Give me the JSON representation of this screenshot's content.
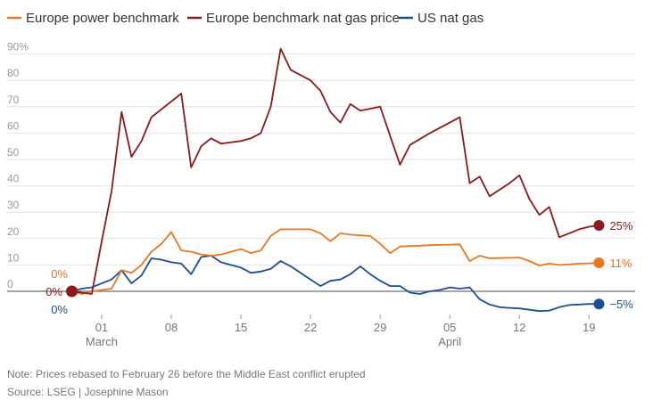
{
  "chart_data": {
    "type": "line",
    "title": "",
    "xlabel": "",
    "ylabel": "",
    "ylim": [
      -5,
      95
    ],
    "y_ticks": [
      0,
      10,
      20,
      30,
      40,
      50,
      60,
      70,
      80,
      90
    ],
    "y_tick_labels": [
      "0",
      "10",
      "20",
      "30",
      "40",
      "50",
      "60",
      "70",
      "80",
      "90%"
    ],
    "grid": true,
    "legend_position": "top-left",
    "x_tick_days": [
      3,
      10,
      17,
      24,
      31,
      38,
      45,
      52
    ],
    "x_tick_labels": [
      "01",
      "08",
      "15",
      "22",
      "29",
      "05",
      "12",
      "19"
    ],
    "month_labels": [
      {
        "day": 3,
        "text": "March"
      },
      {
        "day": 38,
        "text": "April"
      }
    ],
    "x_range": [
      0,
      54
    ],
    "series": [
      {
        "name": "Europe power benchmark",
        "color": "#e87722",
        "end_label": "11%",
        "start_label": "0%",
        "start_label_pos": "above",
        "points": [
          [
            0,
            0
          ],
          [
            1,
            -1
          ],
          [
            2,
            0
          ],
          [
            3,
            0.5
          ],
          [
            4,
            1
          ],
          [
            5,
            8
          ],
          [
            6,
            7
          ],
          [
            7,
            10
          ],
          [
            8,
            15
          ],
          [
            9,
            18
          ],
          [
            10,
            22.5
          ],
          [
            11,
            15.5
          ],
          [
            12,
            15
          ],
          [
            13,
            14
          ],
          [
            14,
            13.5
          ],
          [
            15,
            14
          ],
          [
            16,
            15
          ],
          [
            17,
            16
          ],
          [
            18,
            14.5
          ],
          [
            19,
            15.5
          ],
          [
            20,
            21
          ],
          [
            21,
            23.5
          ],
          [
            22,
            23.5
          ],
          [
            23,
            23.5
          ],
          [
            24,
            23.5
          ],
          [
            25,
            22
          ],
          [
            26,
            19
          ],
          [
            27,
            22
          ],
          [
            28,
            21.5
          ],
          [
            29,
            21.2
          ],
          [
            30,
            21
          ],
          [
            31,
            18
          ],
          [
            32,
            14.5
          ],
          [
            33,
            17
          ],
          [
            34,
            17.2
          ],
          [
            35,
            17.3
          ],
          [
            36,
            17.5
          ],
          [
            37,
            17.6
          ],
          [
            38,
            17.7
          ],
          [
            39,
            17.8
          ],
          [
            40,
            11.5
          ],
          [
            41,
            13.5
          ],
          [
            42,
            12.5
          ],
          [
            43,
            12.6
          ],
          [
            44,
            12.7
          ],
          [
            45,
            12.8
          ],
          [
            46,
            11.5
          ],
          [
            47,
            9.8
          ],
          [
            48,
            10.5
          ],
          [
            49,
            10
          ],
          [
            50,
            10.2
          ],
          [
            51,
            10.5
          ],
          [
            52,
            10.6
          ],
          [
            53,
            10.8
          ]
        ]
      },
      {
        "name": "Europe benchmark nat gas price",
        "color": "#8b1a1a",
        "end_label": "25%",
        "start_label": "0%",
        "start_label_pos": "left",
        "points": [
          [
            0,
            0
          ],
          [
            2,
            -1
          ],
          [
            3,
            19
          ],
          [
            4,
            38
          ],
          [
            5,
            68
          ],
          [
            6,
            51
          ],
          [
            7,
            57
          ],
          [
            8,
            66
          ],
          [
            10,
            72
          ],
          [
            11,
            75
          ],
          [
            12,
            47
          ],
          [
            13,
            55
          ],
          [
            14,
            58
          ],
          [
            15,
            56
          ],
          [
            17,
            57
          ],
          [
            18,
            58
          ],
          [
            19,
            60
          ],
          [
            20,
            70
          ],
          [
            21,
            92
          ],
          [
            22,
            84
          ],
          [
            24,
            80
          ],
          [
            25,
            76
          ],
          [
            26,
            68
          ],
          [
            27,
            64
          ],
          [
            28,
            71
          ],
          [
            29,
            68.5
          ],
          [
            31,
            70
          ],
          [
            32,
            59
          ],
          [
            33,
            48
          ],
          [
            34,
            55.5
          ],
          [
            36,
            60
          ],
          [
            38,
            64
          ],
          [
            39,
            66
          ],
          [
            40,
            41
          ],
          [
            41,
            43.5
          ],
          [
            42,
            36
          ],
          [
            44,
            41
          ],
          [
            45,
            44
          ],
          [
            46,
            35
          ],
          [
            47,
            29
          ],
          [
            48,
            32
          ],
          [
            49,
            20.5
          ],
          [
            50,
            22
          ],
          [
            51,
            23.5
          ],
          [
            52,
            24.5
          ],
          [
            53,
            25
          ]
        ]
      },
      {
        "name": "US nat gas",
        "color": "#1f4e8c",
        "end_label": "−5%",
        "start_label": "0%",
        "start_label_pos": "below",
        "points": [
          [
            0,
            0
          ],
          [
            1,
            1
          ],
          [
            2,
            1.5
          ],
          [
            3,
            3
          ],
          [
            4,
            4.5
          ],
          [
            5,
            8
          ],
          [
            6,
            3
          ],
          [
            7,
            6
          ],
          [
            8,
            12.5
          ],
          [
            9,
            12
          ],
          [
            10,
            11
          ],
          [
            11,
            10.5
          ],
          [
            12,
            6.5
          ],
          [
            13,
            13
          ],
          [
            14,
            13.5
          ],
          [
            15,
            11
          ],
          [
            16,
            10
          ],
          [
            17,
            9
          ],
          [
            18,
            7
          ],
          [
            19,
            7.5
          ],
          [
            20,
            8.5
          ],
          [
            21,
            11.5
          ],
          [
            22,
            9.5
          ],
          [
            23,
            7
          ],
          [
            24,
            4.5
          ],
          [
            25,
            2
          ],
          [
            26,
            4
          ],
          [
            27,
            4.5
          ],
          [
            28,
            6.5
          ],
          [
            29,
            9.5
          ],
          [
            30,
            6.5
          ],
          [
            31,
            4
          ],
          [
            32,
            2
          ],
          [
            33,
            2
          ],
          [
            34,
            -0.5
          ],
          [
            35,
            -1
          ],
          [
            36,
            0
          ],
          [
            37,
            0.5
          ],
          [
            38,
            1.5
          ],
          [
            39,
            1
          ],
          [
            40,
            1.5
          ],
          [
            41,
            -3
          ],
          [
            42,
            -5
          ],
          [
            43,
            -6
          ],
          [
            44,
            -6.3
          ],
          [
            45,
            -6.5
          ],
          [
            46,
            -7
          ],
          [
            47,
            -7.5
          ],
          [
            48,
            -7.3
          ],
          [
            49,
            -6
          ],
          [
            50,
            -5.2
          ],
          [
            51,
            -5
          ],
          [
            52,
            -4.8
          ],
          [
            53,
            -4.8
          ]
        ]
      }
    ]
  },
  "footer": {
    "note": "Note: Prices rebased to February 26 before the Middle East conflict erupted",
    "source": "Source: LSEG | Josephine Mason"
  }
}
